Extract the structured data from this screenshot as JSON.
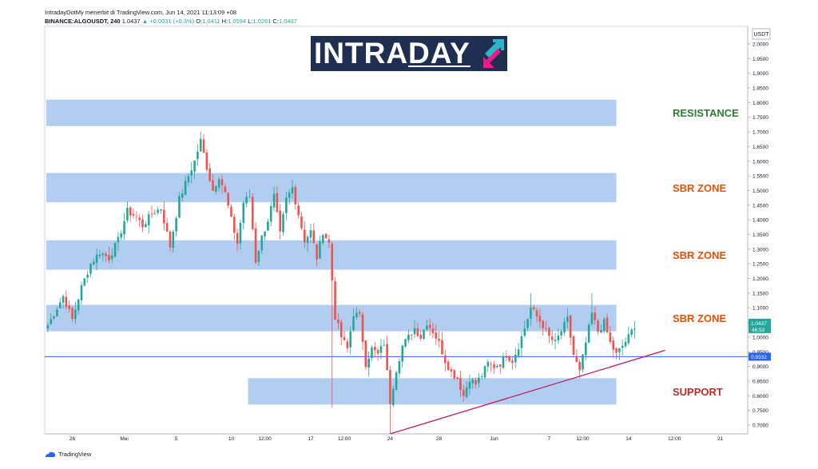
{
  "header": {
    "line1": "IntradayDotMy menerbit di TradingView.com, Jun 14, 2021 11:13:09 +08",
    "symbol": "BINANCE:ALGOUSDT, 240",
    "last": "1.0437",
    "change": "▲ +0.0031 (+0.3%)",
    "o_label": "O:",
    "o": "1.0411",
    "h_label": "H:",
    "h": "1.0594",
    "l_label": "L:",
    "l": "1.0261",
    "c_label": "C:",
    "c": "1.0437"
  },
  "logo": {
    "part1": "INTRA",
    "part2": "DAY"
  },
  "footer": {
    "brand": "TradingView"
  },
  "colors": {
    "zone_fill": "#a9c8ee",
    "resistance": "#2e7d32",
    "zone_label": "#e65100",
    "support": "#c62828",
    "up": "#26a69a",
    "down": "#ef5350",
    "trendline": "#c2185b",
    "hline": "#2962ff"
  },
  "chart_data": {
    "type": "candlestick",
    "currency": "USDT",
    "ylim": [
      0.67,
      2.06
    ],
    "y_ticks": [
      "2.0000",
      "1.9500",
      "1.9000",
      "1.8500",
      "1.8000",
      "1.7500",
      "1.7000",
      "1.6500",
      "1.6000",
      "1.5500",
      "1.5000",
      "1.4500",
      "1.4000",
      "1.3500",
      "1.3000",
      "1.2500",
      "1.2000",
      "1.1500",
      "1.1000",
      "1.0500",
      "1.0000",
      "0.9500",
      "0.9000",
      "0.8500",
      "0.8000",
      "0.7500",
      "0.7000"
    ],
    "x_ticks": [
      {
        "label": "26",
        "i": 8
      },
      {
        "label": "Mei",
        "i": 25
      },
      {
        "label": "5",
        "i": 42
      },
      {
        "label": "10",
        "i": 60
      },
      {
        "label": "12:00",
        "i": 71
      },
      {
        "label": "17",
        "i": 86
      },
      {
        "label": "12:00",
        "i": 97
      },
      {
        "label": "24",
        "i": 112
      },
      {
        "label": "28",
        "i": 128
      },
      {
        "label": "Jun",
        "i": 146
      },
      {
        "label": "7",
        "i": 164
      },
      {
        "label": "12:00",
        "i": 175
      },
      {
        "label": "14",
        "i": 190
      },
      {
        "label": "12:00",
        "i": 205
      },
      {
        "label": "21",
        "i": 220
      }
    ],
    "x_count": 230,
    "close_anchors": [
      [
        0,
        1.04
      ],
      [
        3,
        1.1
      ],
      [
        5,
        1.14
      ],
      [
        8,
        1.06
      ],
      [
        11,
        1.17
      ],
      [
        14,
        1.25
      ],
      [
        17,
        1.29
      ],
      [
        20,
        1.27
      ],
      [
        23,
        1.33
      ],
      [
        26,
        1.43
      ],
      [
        29,
        1.41
      ],
      [
        31,
        1.38
      ],
      [
        34,
        1.42
      ],
      [
        37,
        1.44
      ],
      [
        40,
        1.31
      ],
      [
        43,
        1.47
      ],
      [
        46,
        1.55
      ],
      [
        48,
        1.6
      ],
      [
        50,
        1.67
      ],
      [
        52,
        1.58
      ],
      [
        54,
        1.5
      ],
      [
        56,
        1.55
      ],
      [
        58,
        1.49
      ],
      [
        60,
        1.4
      ],
      [
        62,
        1.32
      ],
      [
        64,
        1.46
      ],
      [
        66,
        1.48
      ],
      [
        68,
        1.26
      ],
      [
        70,
        1.34
      ],
      [
        72,
        1.4
      ],
      [
        74,
        1.48
      ],
      [
        76,
        1.35
      ],
      [
        78,
        1.47
      ],
      [
        80,
        1.51
      ],
      [
        82,
        1.42
      ],
      [
        84,
        1.33
      ],
      [
        86,
        1.36
      ],
      [
        88,
        1.27
      ],
      [
        90,
        1.36
      ],
      [
        92,
        1.32
      ],
      [
        94,
        1.07
      ],
      [
        96,
        1.0
      ],
      [
        98,
        0.96
      ],
      [
        100,
        1.08
      ],
      [
        102,
        1.07
      ],
      [
        104,
        0.91
      ],
      [
        106,
        0.96
      ],
      [
        108,
        0.94
      ],
      [
        110,
        0.98
      ],
      [
        112,
        0.78
      ],
      [
        114,
        0.89
      ],
      [
        116,
        0.97
      ],
      [
        118,
        1.0
      ],
      [
        120,
        1.03
      ],
      [
        122,
        1.0
      ],
      [
        124,
        1.05
      ],
      [
        126,
        1.02
      ],
      [
        128,
        0.98
      ],
      [
        130,
        0.92
      ],
      [
        132,
        0.88
      ],
      [
        134,
        0.86
      ],
      [
        136,
        0.8
      ],
      [
        138,
        0.86
      ],
      [
        140,
        0.84
      ],
      [
        142,
        0.87
      ],
      [
        144,
        0.91
      ],
      [
        146,
        0.9
      ],
      [
        148,
        0.91
      ],
      [
        150,
        0.94
      ],
      [
        152,
        0.92
      ],
      [
        154,
        0.97
      ],
      [
        156,
        1.03
      ],
      [
        158,
        1.1
      ],
      [
        160,
        1.07
      ],
      [
        162,
        1.04
      ],
      [
        164,
        1.0
      ],
      [
        166,
        0.98
      ],
      [
        168,
        1.02
      ],
      [
        170,
        1.06
      ],
      [
        172,
        0.94
      ],
      [
        174,
        0.88
      ],
      [
        176,
        0.98
      ],
      [
        178,
        1.08
      ],
      [
        180,
        1.02
      ],
      [
        182,
        1.05
      ],
      [
        184,
        0.98
      ],
      [
        186,
        0.94
      ],
      [
        188,
        0.97
      ],
      [
        190,
        1.0
      ],
      [
        192,
        1.04
      ]
    ],
    "extremes": [
      {
        "i": 50,
        "high": 1.7
      },
      {
        "i": 93,
        "low": 0.76
      },
      {
        "i": 112,
        "low": 0.67
      },
      {
        "i": 158,
        "high": 1.15
      },
      {
        "i": 178,
        "high": 1.15
      },
      {
        "i": 174,
        "low": 0.86
      }
    ],
    "zones": [
      {
        "label": "RESISTANCE",
        "type": "resistance",
        "from": 1.72,
        "to": 1.81,
        "i0": 0,
        "i1": 186
      },
      {
        "label": "SBR ZONE",
        "type": "sbr",
        "from": 1.46,
        "to": 1.56,
        "i0": 0,
        "i1": 186
      },
      {
        "label": "SBR ZONE",
        "type": "sbr",
        "from": 1.23,
        "to": 1.33,
        "i0": 0,
        "i1": 186
      },
      {
        "label": "SBR ZONE",
        "type": "sbr",
        "from": 1.02,
        "to": 1.11,
        "i0": 0,
        "i1": 186
      },
      {
        "label": "SUPPORT",
        "type": "support",
        "from": 0.77,
        "to": 0.86,
        "i0": 66,
        "i1": 186
      }
    ],
    "hline": {
      "value": 0.9332,
      "label": "0.9332"
    },
    "trendline": {
      "from": [
        112,
        0.67
      ],
      "to": [
        202,
        0.955
      ]
    },
    "last_price": {
      "value": 1.0437,
      "label": "1.0437",
      "countdown": "46:53"
    }
  }
}
